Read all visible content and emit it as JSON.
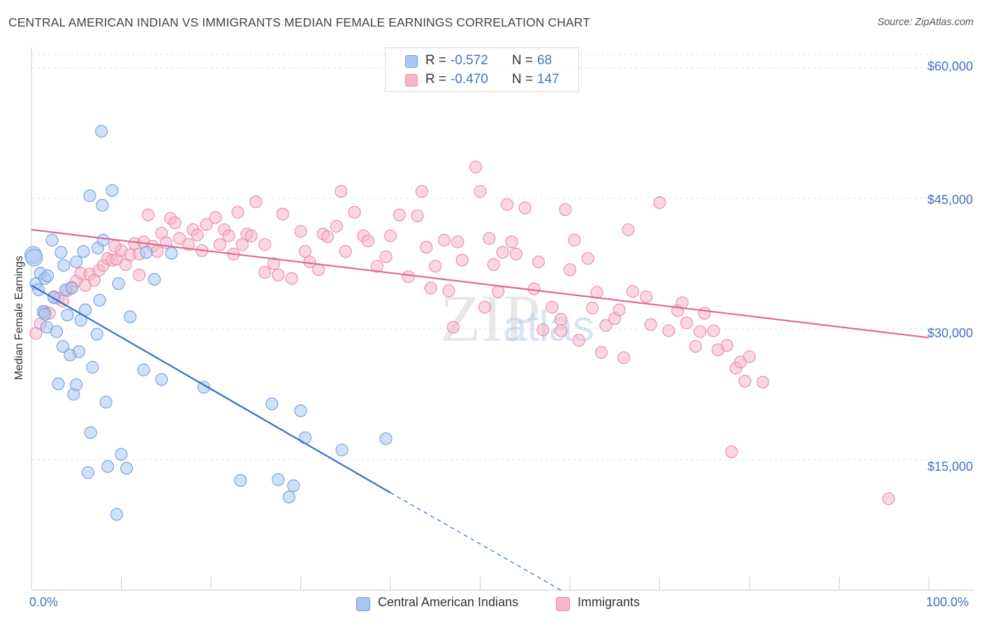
{
  "title": "CENTRAL AMERICAN INDIAN VS IMMIGRANTS MEDIAN FEMALE EARNINGS CORRELATION CHART",
  "source": "Source: ZipAtlas.com",
  "colors": {
    "blue_fill": "#a9c6f0",
    "blue_stroke": "#6f9fe0",
    "blue_line": "#2f6fd0",
    "pink_fill": "#f5b6c8",
    "pink_stroke": "#e98aa6",
    "pink_line": "#e0688f",
    "axis_label": "#4472c4",
    "grid": "#e3e3e3"
  },
  "legend": {
    "rows": [
      {
        "r_label": "R =",
        "r_value": "-0.572",
        "n_label": "N =",
        "n_value": "68"
      },
      {
        "r_label": "R =",
        "r_value": "-0.470",
        "n_label": "N =",
        "n_value": "147"
      }
    ]
  },
  "bottom_legend": {
    "series1": "Central American Indians",
    "series2": "Immigrants"
  },
  "chart_data": {
    "type": "scatter",
    "title": "CENTRAL AMERICAN INDIAN VS IMMIGRANTS MEDIAN FEMALE EARNINGS CORRELATION CHART",
    "xlabel": "",
    "ylabel": "Median Female Earnings",
    "xlim": [
      0,
      100
    ],
    "ylim": [
      0,
      62000
    ],
    "x_tick_labels": [
      "0.0%",
      "100.0%"
    ],
    "y_ticks": [
      15000,
      30000,
      45000,
      60000
    ],
    "y_tick_labels": [
      "$15,000",
      "$30,000",
      "$45,000",
      "$60,000"
    ],
    "grid": true,
    "legend_position": "top-center",
    "watermark": "ZIPatlas",
    "series": [
      {
        "name": "Central American Indians",
        "color": "blue",
        "R": -0.572,
        "N": 68,
        "trend": {
          "x0": 0,
          "y0": 35000,
          "x1": 40,
          "y1": 11200,
          "dash_to_x": 59,
          "dash_to_y": 0
        },
        "points": [
          [
            0.2,
            38500
          ],
          [
            0.3,
            38200
          ],
          [
            0.5,
            35200
          ],
          [
            0.8,
            34500
          ],
          [
            1.0,
            36400
          ],
          [
            1.3,
            32000
          ],
          [
            1.5,
            31700
          ],
          [
            1.5,
            35800
          ],
          [
            1.7,
            30200
          ],
          [
            1.8,
            36100
          ],
          [
            2.3,
            40200
          ],
          [
            2.5,
            33600
          ],
          [
            2.8,
            29700
          ],
          [
            3.0,
            23700
          ],
          [
            3.3,
            38800
          ],
          [
            3.5,
            28000
          ],
          [
            3.6,
            37300
          ],
          [
            3.8,
            34500
          ],
          [
            4.0,
            31600
          ],
          [
            4.3,
            27000
          ],
          [
            4.5,
            34700
          ],
          [
            4.7,
            22500
          ],
          [
            5.0,
            37700
          ],
          [
            5.0,
            23600
          ],
          [
            5.3,
            27400
          ],
          [
            5.5,
            31000
          ],
          [
            5.8,
            38900
          ],
          [
            6.0,
            32200
          ],
          [
            6.3,
            13500
          ],
          [
            6.5,
            45300
          ],
          [
            6.6,
            18100
          ],
          [
            6.8,
            25600
          ],
          [
            7.3,
            29400
          ],
          [
            7.4,
            39300
          ],
          [
            7.6,
            33300
          ],
          [
            7.8,
            52700
          ],
          [
            7.9,
            44200
          ],
          [
            8.0,
            40200
          ],
          [
            8.3,
            21600
          ],
          [
            8.5,
            14200
          ],
          [
            9.0,
            45900
          ],
          [
            9.5,
            8700
          ],
          [
            9.7,
            35200
          ],
          [
            10.0,
            15600
          ],
          [
            10.6,
            14000
          ],
          [
            11.0,
            31400
          ],
          [
            12.5,
            25300
          ],
          [
            12.8,
            38800
          ],
          [
            13.7,
            35700
          ],
          [
            14.5,
            24200
          ],
          [
            15.6,
            38700
          ],
          [
            19.2,
            23300
          ],
          [
            23.3,
            12600
          ],
          [
            26.8,
            21400
          ],
          [
            27.5,
            12700
          ],
          [
            28.7,
            10700
          ],
          [
            29.2,
            12000
          ],
          [
            30.0,
            20600
          ],
          [
            30.5,
            17500
          ],
          [
            34.6,
            16100
          ],
          [
            39.5,
            17400
          ]
        ]
      },
      {
        "name": "Immigrants",
        "color": "pink",
        "R": -0.47,
        "N": 147,
        "trend": {
          "x0": 0,
          "y0": 41400,
          "x1": 100,
          "y1": 29000
        },
        "points": [
          [
            0.5,
            29500
          ],
          [
            1.0,
            30600
          ],
          [
            1.5,
            32000
          ],
          [
            2.0,
            31800
          ],
          [
            2.5,
            33700
          ],
          [
            3.0,
            33500
          ],
          [
            3.5,
            33200
          ],
          [
            4.0,
            34400
          ],
          [
            4.5,
            34800
          ],
          [
            5.0,
            35500
          ],
          [
            5.5,
            36400
          ],
          [
            6.0,
            35000
          ],
          [
            6.5,
            36300
          ],
          [
            7.0,
            35600
          ],
          [
            7.5,
            36700
          ],
          [
            8.0,
            37300
          ],
          [
            8.5,
            38100
          ],
          [
            9.0,
            37900
          ],
          [
            9.5,
            38000
          ],
          [
            10.0,
            39000
          ],
          [
            10.5,
            37400
          ],
          [
            11.0,
            38500
          ],
          [
            11.5,
            39800
          ],
          [
            12.0,
            38600
          ],
          [
            12.5,
            40000
          ],
          [
            13.0,
            43100
          ],
          [
            13.5,
            39500
          ],
          [
            14.0,
            38900
          ],
          [
            14.5,
            41000
          ],
          [
            15.0,
            39900
          ],
          [
            15.5,
            42700
          ],
          [
            16.0,
            42200
          ],
          [
            16.5,
            40400
          ],
          [
            17.5,
            39700
          ],
          [
            18.0,
            41400
          ],
          [
            18.5,
            40800
          ],
          [
            19.0,
            39000
          ],
          [
            19.5,
            42000
          ],
          [
            20.5,
            42800
          ],
          [
            21.0,
            39700
          ],
          [
            21.5,
            41400
          ],
          [
            22.0,
            40700
          ],
          [
            23.0,
            43400
          ],
          [
            23.5,
            39700
          ],
          [
            24.0,
            40900
          ],
          [
            24.5,
            40700
          ],
          [
            25.0,
            44600
          ],
          [
            26.0,
            39700
          ],
          [
            27.0,
            37500
          ],
          [
            27.5,
            36200
          ],
          [
            28.0,
            43200
          ],
          [
            29.0,
            35800
          ],
          [
            30.0,
            41200
          ],
          [
            30.5,
            38900
          ],
          [
            31.0,
            37700
          ],
          [
            32.0,
            36800
          ],
          [
            32.5,
            40900
          ],
          [
            33.0,
            40600
          ],
          [
            34.0,
            41800
          ],
          [
            34.5,
            45800
          ],
          [
            35.0,
            38900
          ],
          [
            36.0,
            43400
          ],
          [
            37.0,
            40700
          ],
          [
            37.5,
            40100
          ],
          [
            38.5,
            37200
          ],
          [
            39.5,
            38300
          ],
          [
            40.0,
            40700
          ],
          [
            41.0,
            43100
          ],
          [
            42.0,
            36000
          ],
          [
            43.0,
            43000
          ],
          [
            43.5,
            45800
          ],
          [
            44.0,
            39400
          ],
          [
            44.5,
            34700
          ],
          [
            45.0,
            37200
          ],
          [
            46.0,
            40200
          ],
          [
            46.5,
            34400
          ],
          [
            47.5,
            40000
          ],
          [
            48.0,
            37900
          ],
          [
            49.5,
            48600
          ],
          [
            50.0,
            45800
          ],
          [
            51.0,
            40400
          ],
          [
            51.5,
            37400
          ],
          [
            52.0,
            34300
          ],
          [
            52.5,
            38800
          ],
          [
            53.0,
            44300
          ],
          [
            53.5,
            40000
          ],
          [
            54.0,
            38600
          ],
          [
            55.0,
            43900
          ],
          [
            56.0,
            34600
          ],
          [
            56.5,
            37700
          ],
          [
            57.0,
            29900
          ],
          [
            58.0,
            32500
          ],
          [
            59.0,
            31100
          ],
          [
            59.5,
            43700
          ],
          [
            60.0,
            36800
          ],
          [
            60.5,
            40200
          ],
          [
            61.0,
            28700
          ],
          [
            62.0,
            38100
          ],
          [
            62.5,
            32400
          ],
          [
            63.0,
            34200
          ],
          [
            64.0,
            30400
          ],
          [
            65.0,
            31200
          ],
          [
            65.5,
            32200
          ],
          [
            66.0,
            26700
          ],
          [
            66.5,
            41400
          ],
          [
            67.0,
            34300
          ],
          [
            68.5,
            33700
          ],
          [
            69.0,
            30500
          ],
          [
            70.0,
            44500
          ],
          [
            71.0,
            29800
          ],
          [
            72.0,
            32100
          ],
          [
            73.0,
            30700
          ],
          [
            74.0,
            28000
          ],
          [
            74.5,
            29700
          ],
          [
            75.0,
            31800
          ],
          [
            76.0,
            29800
          ],
          [
            76.5,
            27600
          ],
          [
            77.5,
            28100
          ],
          [
            78.0,
            15900
          ],
          [
            78.5,
            25500
          ],
          [
            79.0,
            26200
          ],
          [
            79.5,
            24000
          ],
          [
            80.0,
            26800
          ],
          [
            81.5,
            23900
          ],
          [
            95.5,
            10500
          ],
          [
            22.5,
            38600
          ],
          [
            12.0,
            36200
          ],
          [
            9.3,
            39500
          ],
          [
            26.0,
            36500
          ],
          [
            47.0,
            30200
          ],
          [
            59.0,
            29800
          ],
          [
            63.5,
            27300
          ],
          [
            72.5,
            33000
          ],
          [
            50.5,
            32500
          ]
        ]
      }
    ]
  }
}
